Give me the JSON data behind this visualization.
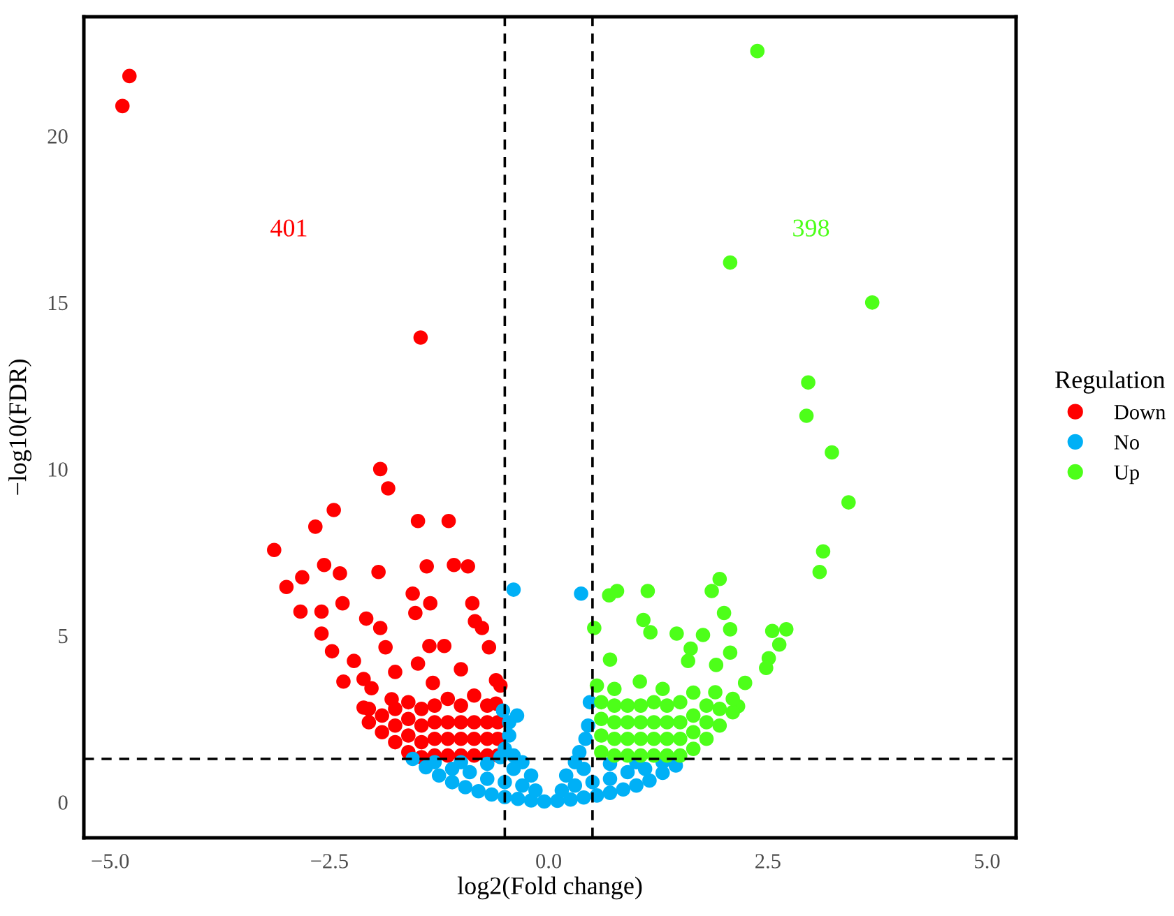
{
  "chart_data": {
    "type": "scatter",
    "xlabel": "log2(Fold change)",
    "ylabel": "−log10(FDR)",
    "legend_title": "Regulation",
    "legend": "right",
    "grid": false,
    "marker": "circle",
    "xlim": [
      -5.3,
      5.33
    ],
    "ylim": [
      -1.07,
      23.58
    ],
    "xticks": [
      {
        "value": -5,
        "label": "−5.0"
      },
      {
        "value": -2.5,
        "label": "−2.5"
      },
      {
        "value": 0,
        "label": "0.0"
      },
      {
        "value": 2.5,
        "label": "2.5"
      },
      {
        "value": 5,
        "label": "5.0"
      }
    ],
    "yticks": [
      0,
      5,
      10,
      15,
      20
    ],
    "ref_lines": [
      {
        "axis": "x",
        "value": -0.5,
        "line_style": "dashed",
        "color": "#000000"
      },
      {
        "axis": "x",
        "value": 0.5,
        "line_style": "dashed",
        "color": "#000000"
      },
      {
        "axis": "y",
        "value": 1.3,
        "line_style": "dashed",
        "color": "#000000"
      }
    ],
    "annotations": [
      "401",
      "398"
    ],
    "series": [
      {
        "name": "Down",
        "color": "#ff0000",
        "x": [
          -4.78,
          -4.86,
          -1.46,
          -1.92,
          -1.83,
          -2.45,
          -2.66,
          -1.49,
          -1.14,
          -3.13,
          -2.99,
          -2.81,
          -2.56,
          -2.38,
          -1.94,
          -1.39,
          -1.08,
          -0.92,
          -2.83,
          -1.55,
          -1.35,
          -0.87,
          -0.84,
          -0.76,
          -0.68,
          -2.59,
          -2.35,
          -2.08,
          -1.92,
          -2.59,
          -2.47,
          -1.52,
          -1.36,
          -1.19,
          -1.86,
          -2.22,
          -1.75,
          -2.02,
          -2.11,
          -1.49,
          -1.32,
          -1.0,
          -0.6,
          -2.34,
          -2.11,
          -1.79,
          -0.6,
          -2.05,
          -2.05,
          -1.9,
          -1.9,
          -1.75,
          -1.75,
          -1.75,
          -1.6,
          -1.6,
          -1.6,
          -1.6,
          -1.45,
          -1.45,
          -1.45,
          -1.45,
          -1.3,
          -1.3,
          -1.3,
          -1.3,
          -1.15,
          -1.15,
          -1.15,
          -1.15,
          -1.0,
          -1.0,
          -1.0,
          -1.0,
          -0.85,
          -0.85,
          -0.85,
          -0.85,
          -0.7,
          -0.7,
          -0.7,
          -0.7,
          -0.58,
          -0.58,
          -0.58,
          -0.55
        ],
        "values": [
          21.8,
          20.9,
          13.95,
          10.0,
          9.42,
          8.77,
          8.27,
          8.44,
          8.44,
          7.57,
          6.46,
          6.75,
          7.12,
          6.87,
          6.91,
          7.08,
          7.12,
          7.08,
          5.72,
          6.26,
          5.97,
          5.97,
          5.43,
          5.23,
          4.65,
          5.72,
          5.97,
          5.51,
          5.23,
          5.06,
          4.53,
          5.68,
          4.69,
          4.69,
          4.65,
          4.24,
          3.91,
          3.42,
          3.7,
          4.16,
          3.58,
          3.99,
          3.66,
          3.62,
          2.84,
          3.09,
          2.96,
          2.4,
          2.8,
          2.1,
          2.6,
          1.8,
          2.3,
          2.8,
          1.5,
          2.0,
          2.5,
          3.0,
          1.35,
          1.8,
          2.3,
          2.8,
          1.4,
          1.9,
          2.4,
          2.9,
          1.4,
          1.9,
          2.4,
          3.1,
          1.4,
          1.9,
          2.4,
          2.9,
          1.4,
          1.9,
          2.4,
          3.2,
          1.4,
          1.9,
          2.4,
          2.9,
          1.4,
          1.9,
          2.4,
          3.5
        ]
      },
      {
        "name": "No",
        "color": "#00b0f6",
        "x": [
          -1.55,
          -1.4,
          -1.25,
          -1.1,
          -0.95,
          -0.8,
          -0.65,
          -0.5,
          -0.35,
          -0.2,
          -0.05,
          0.1,
          0.25,
          0.4,
          0.55,
          0.7,
          0.85,
          1.0,
          1.15,
          1.3,
          1.45,
          -1.3,
          -1.1,
          -0.9,
          -0.7,
          -0.5,
          -0.3,
          -0.15,
          0.15,
          0.3,
          0.5,
          0.7,
          0.9,
          1.1,
          1.3,
          -1.0,
          -0.7,
          -0.4,
          0.4,
          0.7,
          1.0,
          -0.5,
          -0.45,
          -0.45,
          -0.4,
          -0.3,
          -0.2,
          0.2,
          0.3,
          0.35,
          0.42,
          0.45,
          -0.55,
          -0.4,
          0.37,
          0.47,
          -0.36,
          -0.52
        ],
        "values": [
          1.3,
          1.05,
          0.8,
          0.6,
          0.45,
          0.33,
          0.23,
          0.15,
          0.1,
          0.05,
          0.02,
          0.04,
          0.08,
          0.14,
          0.2,
          0.28,
          0.38,
          0.5,
          0.65,
          0.88,
          1.1,
          1.2,
          1.0,
          0.9,
          0.7,
          0.6,
          0.5,
          0.35,
          0.35,
          0.5,
          0.6,
          0.7,
          0.9,
          1.0,
          1.2,
          1.2,
          1.15,
          1.0,
          1.0,
          1.15,
          1.2,
          1.6,
          2.0,
          2.4,
          1.4,
          1.2,
          0.8,
          0.8,
          1.2,
          1.5,
          1.9,
          2.3,
          1.35,
          6.38,
          6.26,
          3.0,
          2.6,
          2.75
        ]
      },
      {
        "name": "Up",
        "color": "#4dff19",
        "x": [
          2.38,
          2.07,
          3.69,
          2.96,
          2.94,
          3.23,
          3.42,
          3.13,
          3.09,
          0.69,
          0.78,
          1.13,
          1.95,
          1.86,
          2.0,
          1.08,
          2.07,
          2.07,
          1.76,
          1.46,
          1.16,
          0.52,
          0.7,
          2.55,
          2.71,
          2.63,
          2.51,
          2.48,
          1.62,
          1.59,
          1.91,
          2.24,
          2.16,
          1.04,
          1.65,
          0.6,
          0.6,
          0.6,
          0.6,
          0.75,
          0.75,
          0.75,
          0.75,
          0.75,
          0.9,
          0.9,
          0.9,
          0.9,
          1.05,
          1.05,
          1.05,
          1.05,
          1.2,
          1.2,
          1.2,
          1.2,
          1.35,
          1.35,
          1.35,
          1.35,
          1.5,
          1.5,
          1.5,
          1.5,
          1.65,
          1.65,
          1.65,
          1.8,
          1.8,
          1.8,
          1.95,
          1.95,
          2.1,
          2.1,
          0.55,
          1.3,
          1.9
        ],
        "values": [
          22.55,
          16.2,
          15.0,
          12.6,
          11.6,
          10.5,
          9.0,
          7.53,
          6.91,
          6.21,
          6.34,
          6.34,
          6.7,
          6.34,
          5.68,
          5.47,
          5.19,
          4.49,
          5.02,
          5.06,
          5.1,
          5.23,
          4.28,
          5.14,
          5.19,
          4.73,
          4.32,
          4.03,
          4.61,
          4.24,
          4.12,
          3.58,
          2.88,
          3.62,
          3.29,
          1.5,
          2.0,
          2.5,
          3.0,
          1.4,
          1.9,
          2.4,
          2.9,
          3.4,
          1.4,
          1.9,
          2.4,
          2.9,
          1.4,
          1.9,
          2.4,
          2.9,
          1.4,
          1.9,
          2.4,
          3.0,
          1.4,
          1.9,
          2.4,
          2.9,
          1.4,
          1.9,
          2.4,
          3.0,
          1.6,
          2.1,
          2.6,
          1.9,
          2.4,
          2.9,
          2.3,
          2.8,
          2.7,
          3.1,
          3.5,
          3.4,
          3.3
        ]
      }
    ]
  }
}
